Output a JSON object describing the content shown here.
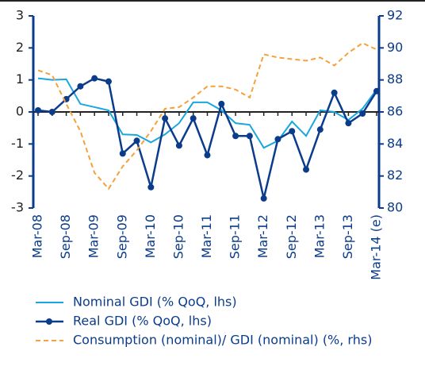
{
  "chart_data": {
    "type": "line",
    "categories": [
      "Mar-08",
      null,
      "Sep-08",
      null,
      "Mar-09",
      null,
      "Sep-09",
      null,
      "Mar-10",
      null,
      "Sep-10",
      null,
      "Mar-11",
      null,
      "Sep-11",
      null,
      "Mar-12",
      null,
      "Sep-12",
      null,
      "Mar-13",
      null,
      "Sep-13",
      null,
      "Mar-14 (e)"
    ],
    "series": [
      {
        "name": "Nominal GDI (% QoQ, lhs)",
        "color": "#1aa7e0",
        "values": [
          1.05,
          1.0,
          1.02,
          0.25,
          0.15,
          0.05,
          -0.7,
          -0.72,
          -0.95,
          -0.7,
          -0.35,
          0.3,
          0.3,
          0.05,
          -0.35,
          -0.4,
          -1.12,
          -0.9,
          -0.3,
          -0.75,
          0.05,
          0.0,
          -0.25,
          0.1,
          0.7
        ]
      },
      {
        "name": "Real GDI (% QoQ, lhs)",
        "color": "#0b3c8c",
        "marker": true,
        "values": [
          0.05,
          0.0,
          0.4,
          0.8,
          1.05,
          0.95,
          -1.3,
          -0.9,
          -2.35,
          -0.2,
          -1.05,
          -0.2,
          -1.35,
          0.25,
          -0.75,
          -0.75,
          -2.7,
          -0.85,
          -0.6,
          -1.8,
          -0.55,
          0.6,
          -0.35,
          -0.05,
          0.65
        ]
      },
      {
        "name": "Consumption (nominal)/ GDI (nominal) (%, rhs)",
        "color": "#f5a13c",
        "dashed": true,
        "axis": "y2",
        "values": [
          88.6,
          88.3,
          86.5,
          84.8,
          82.2,
          81.2,
          82.6,
          83.6,
          84.8,
          86.2,
          86.3,
          86.9,
          87.6,
          87.6,
          87.4,
          86.9,
          89.6,
          89.4,
          89.3,
          89.2,
          89.4,
          88.9,
          89.7,
          90.3,
          89.9
        ]
      }
    ],
    "ylim": [
      -3,
      3
    ],
    "yticks": [
      -3,
      -2,
      -1,
      0,
      1,
      2,
      3
    ],
    "y2lim": [
      80,
      92
    ],
    "y2ticks": [
      80,
      82,
      84,
      86,
      88,
      90,
      92
    ]
  }
}
